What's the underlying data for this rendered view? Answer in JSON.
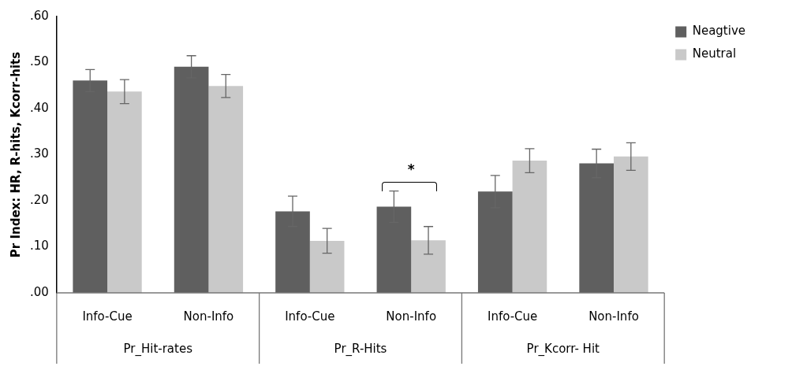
{
  "chart_data": {
    "type": "bar",
    "ylabel": "Pr Index: HR, R-hits, Kcorr-hits",
    "categories": [
      "Info-Cue",
      "Non-Info",
      "Info-Cue",
      "Non-Info",
      "Info-Cue",
      "Non-Info"
    ],
    "series": [
      {
        "name": "Neagtive",
        "color": "#5f5f5f",
        "values": [
          0.461,
          0.491,
          0.177,
          0.187,
          0.22,
          0.281
        ],
        "errors": [
          0.024,
          0.024,
          0.033,
          0.034,
          0.035,
          0.031
        ]
      },
      {
        "name": "Neutral",
        "color": "#c9c9c9",
        "values": [
          0.437,
          0.449,
          0.113,
          0.114,
          0.287,
          0.296
        ],
        "errors": [
          0.026,
          0.025,
          0.027,
          0.03,
          0.026,
          0.03
        ]
      }
    ],
    "ylim": [
      0,
      0.6
    ],
    "yticks": [
      {
        "value": 0,
        "label": ".00"
      },
      {
        "value": 0.1,
        "label": ".10"
      },
      {
        "value": 0.2,
        "label": ".20"
      },
      {
        "value": 0.3,
        "label": ".30"
      },
      {
        "value": 0.4,
        "label": ".40"
      },
      {
        "value": 0.5,
        "label": ".50"
      },
      {
        "value": 0.6,
        "label": ".60"
      }
    ],
    "annotations": [
      "Pr_Hit-rates",
      "Pr_R-Hits",
      "Pr_Kcorr- Hit",
      "*"
    ],
    "grid": false,
    "legend": "right"
  }
}
